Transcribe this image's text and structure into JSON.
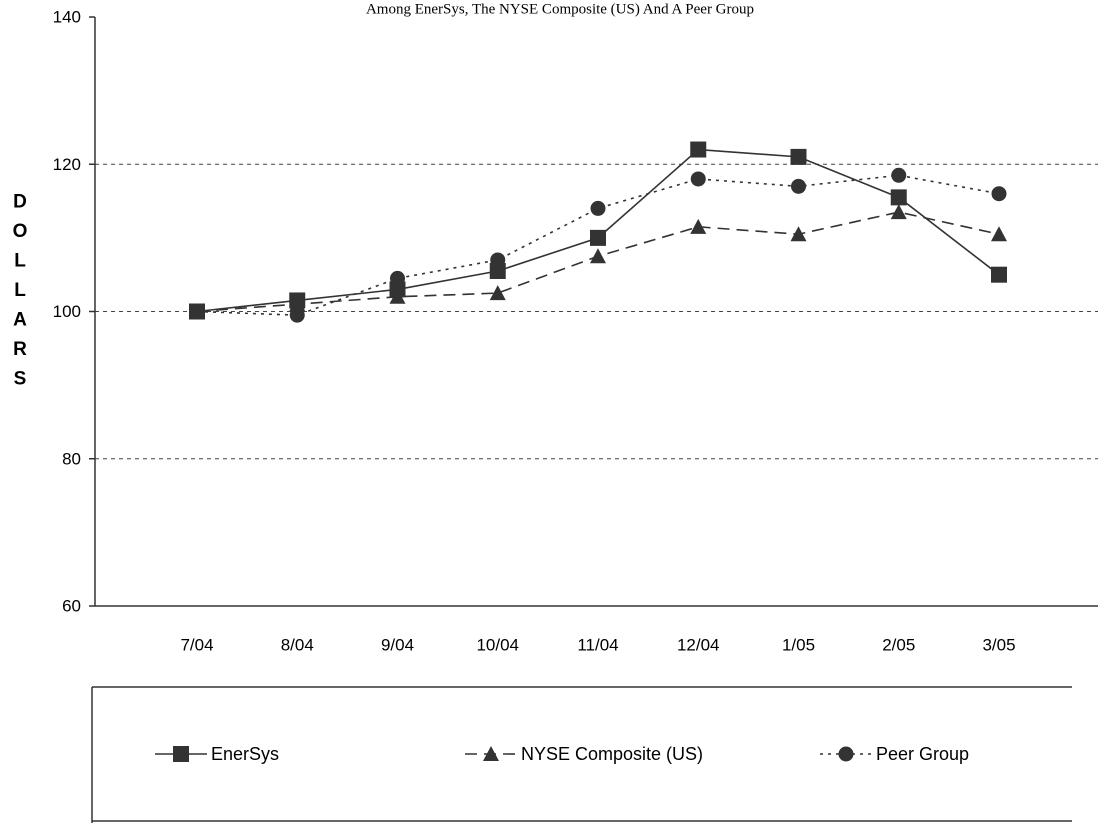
{
  "chart_data": {
    "type": "line",
    "title": "Among EnerSys, The NYSE Composite (US) And A Peer Group",
    "ylabel": "DOLLARS",
    "xlabel": "",
    "categories": [
      "7/04",
      "8/04",
      "9/04",
      "10/04",
      "11/04",
      "12/04",
      "1/05",
      "2/05",
      "3/05"
    ],
    "ylim": [
      60,
      140
    ],
    "yticks": [
      60,
      80,
      100,
      120,
      140
    ],
    "grid_lines_at": [
      80,
      100,
      120
    ],
    "legend_position": "bottom",
    "series": [
      {
        "name": "EnerSys",
        "marker": "square",
        "line_style": "solid",
        "color": "#333333",
        "values": [
          100,
          101.5,
          103,
          105.5,
          110,
          122,
          121,
          115.5,
          105
        ]
      },
      {
        "name": "NYSE Composite (US)",
        "marker": "triangle",
        "line_style": "dashed",
        "color": "#333333",
        "values": [
          100,
          101,
          102,
          102.5,
          107.5,
          111.5,
          110.5,
          113.5,
          110.5
        ]
      },
      {
        "name": "Peer Group",
        "marker": "circle",
        "line_style": "dotted",
        "color": "#333333",
        "values": [
          100,
          99.5,
          104.5,
          107,
          114,
          118,
          117,
          118.5,
          116
        ]
      }
    ]
  }
}
